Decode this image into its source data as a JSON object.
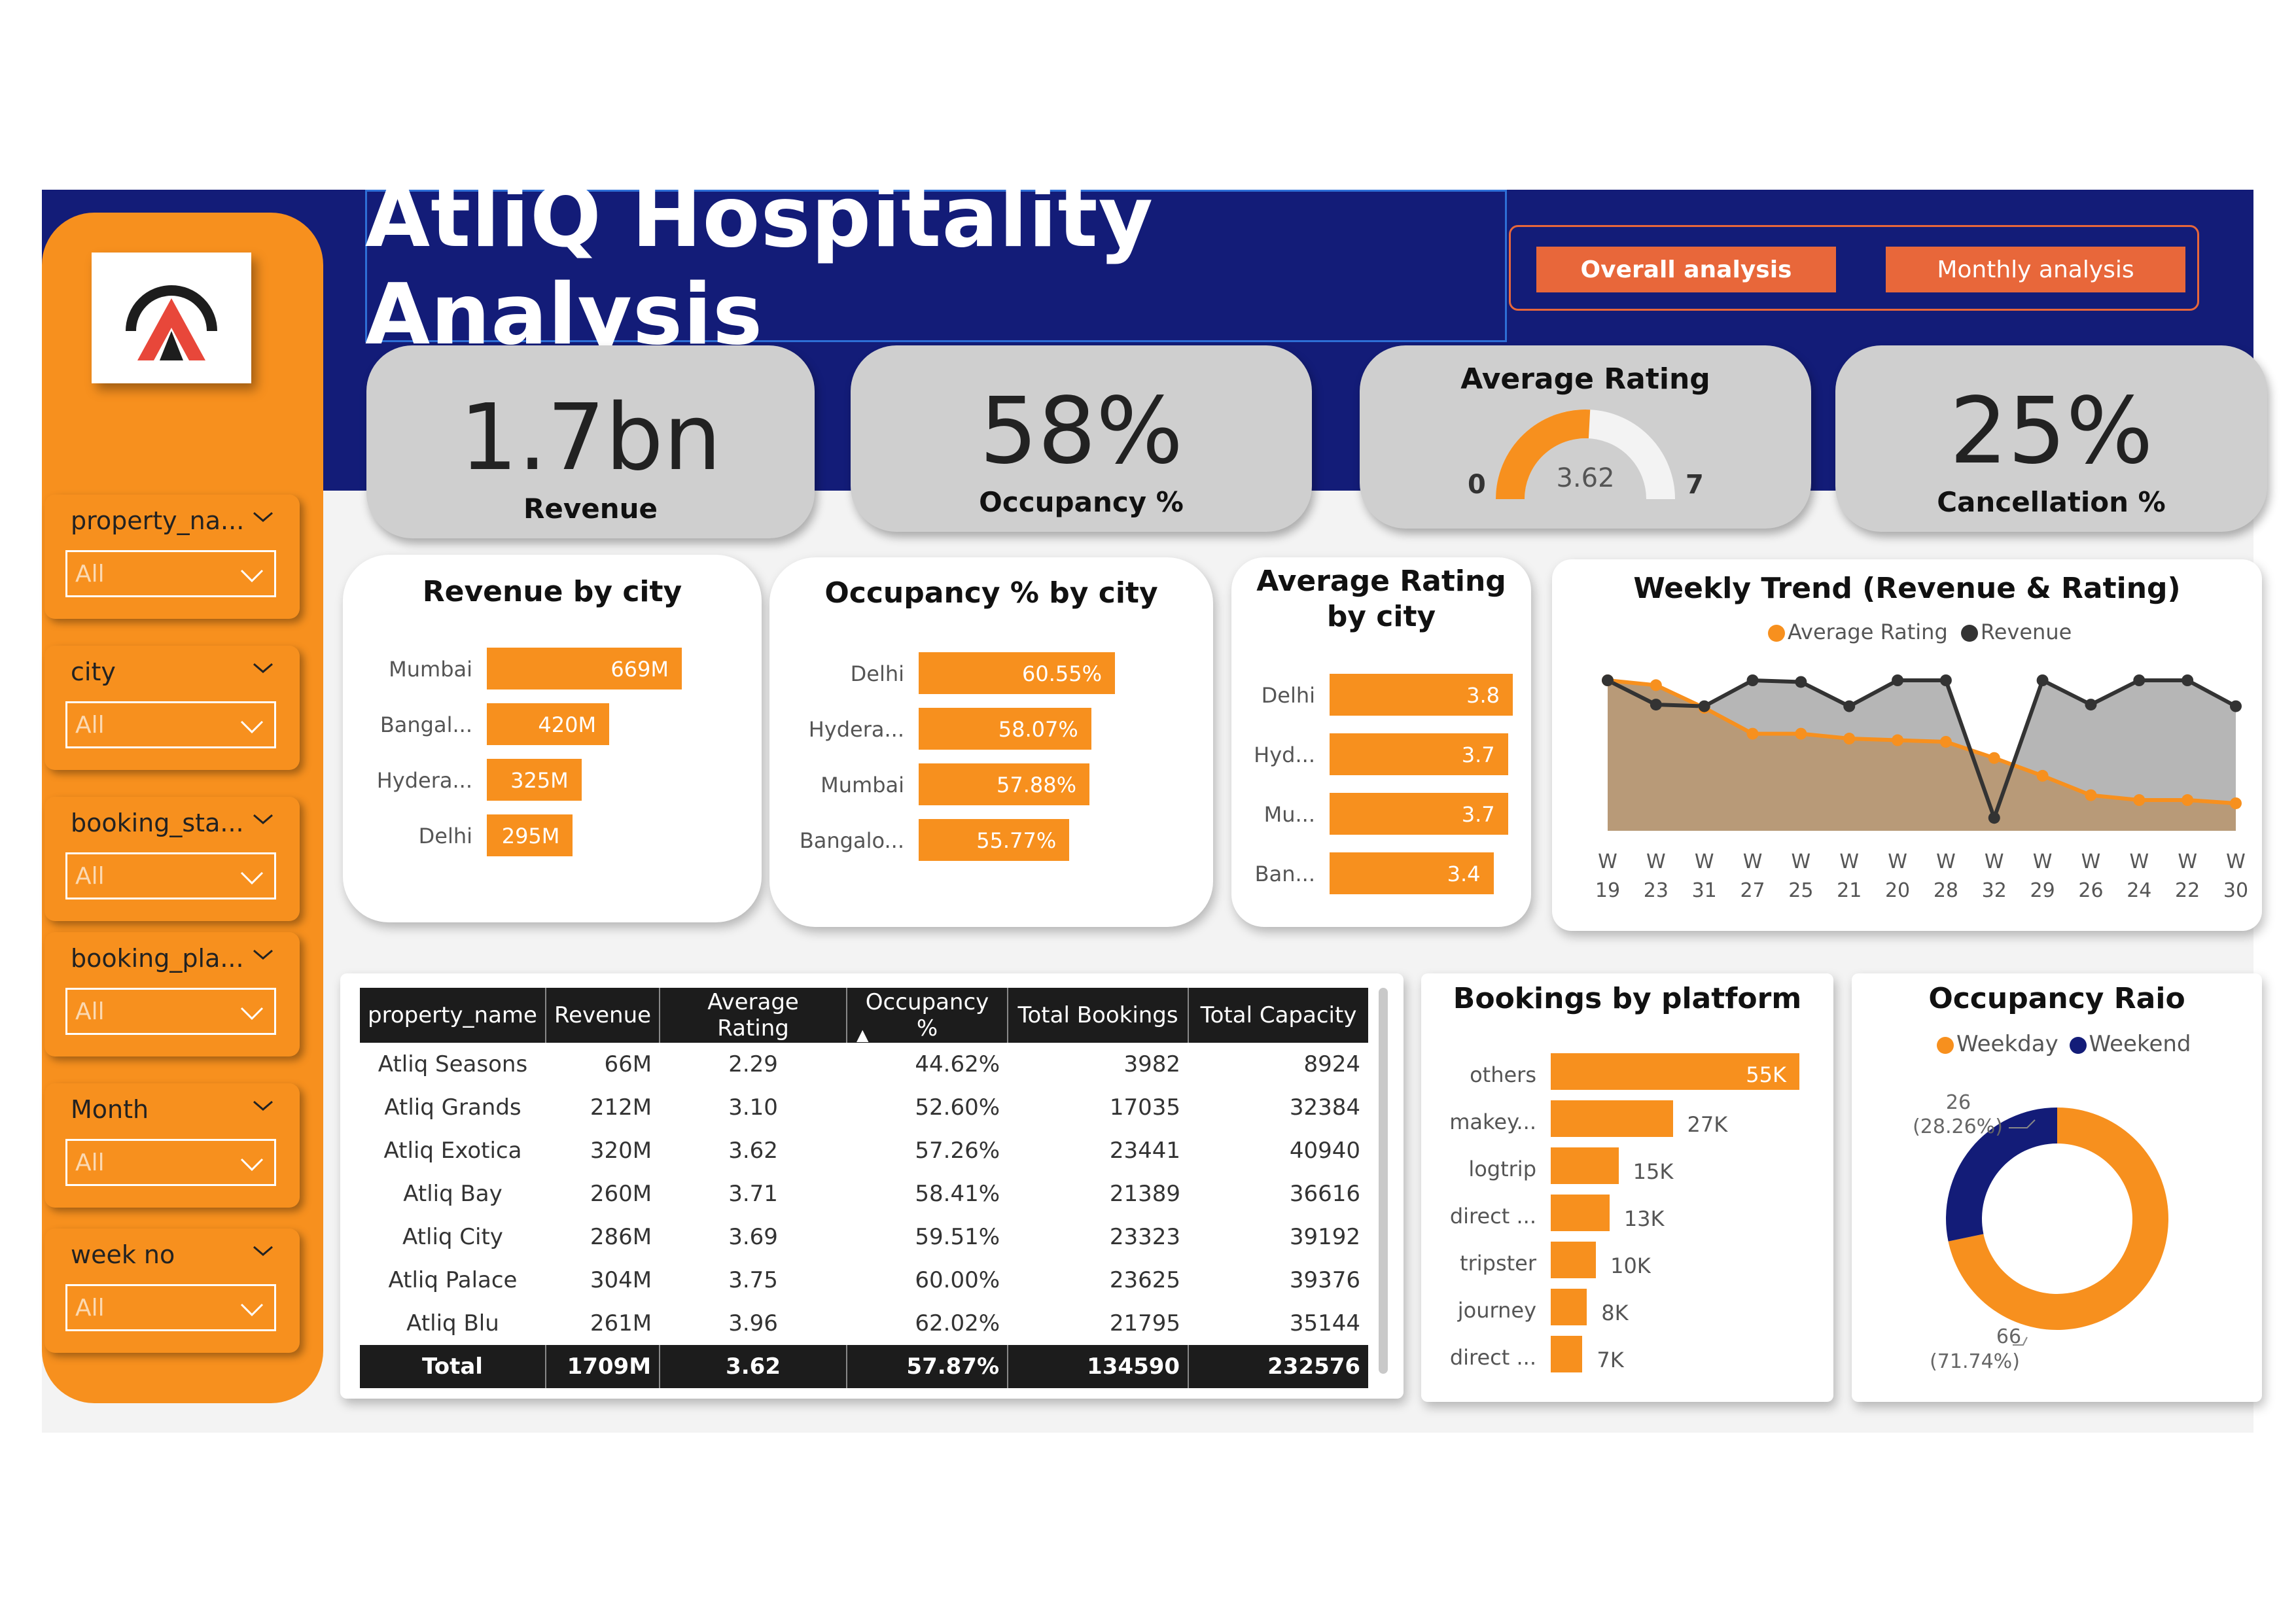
{
  "app": {
    "title": "AtliQ Hospitality Analysis",
    "nav": [
      "Overall analysis",
      "Monthly analysis"
    ]
  },
  "colors": {
    "navy": "#131c78",
    "orange": "#f7901e",
    "nav_orange": "#e8673a",
    "dark_gray": "#333333",
    "area_gray": "#a9a9a9",
    "area_brown": "#b89a78"
  },
  "slicers": [
    {
      "title": "property_na...",
      "value": "All"
    },
    {
      "title": "city",
      "value": "All"
    },
    {
      "title": "booking_sta...",
      "value": "All"
    },
    {
      "title": "booking_pla...",
      "value": "All"
    },
    {
      "title": "Month",
      "value": "All"
    },
    {
      "title": "week no",
      "value": "All"
    }
  ],
  "kpis": {
    "revenue": {
      "value": "1.7bn",
      "label": "Revenue"
    },
    "occupancy": {
      "value": "58%",
      "label": "Occupancy %"
    },
    "rating": {
      "label": "Average Rating",
      "value": "3.62",
      "min": "0",
      "max": "7",
      "fraction": 0.517
    },
    "cancellation": {
      "value": "25%",
      "label": "Cancellation %"
    }
  },
  "revenue_by_city": {
    "title": "Revenue by city",
    "chart_data": {
      "type": "bar",
      "categories": [
        "Mumbai",
        "Bangal...",
        "Hydera...",
        "Delhi"
      ],
      "values": [
        669,
        420,
        325,
        295
      ],
      "labels": [
        "669M",
        "420M",
        "325M",
        "295M"
      ]
    }
  },
  "occupancy_by_city": {
    "title": "Occupancy % by city",
    "chart_data": {
      "type": "bar",
      "categories": [
        "Delhi",
        "Hydera...",
        "Mumbai",
        "Bangalo..."
      ],
      "values": [
        60.55,
        58.07,
        57.88,
        55.77
      ],
      "labels": [
        "60.55%",
        "58.07%",
        "57.88%",
        "55.77%"
      ]
    }
  },
  "rating_by_city": {
    "title": "Average Rating by city",
    "chart_data": {
      "type": "bar",
      "categories": [
        "Delhi",
        "Hyd...",
        "Mu...",
        "Ban..."
      ],
      "values": [
        3.8,
        3.7,
        3.7,
        3.4
      ],
      "labels": [
        "3.8",
        "3.7",
        "3.7",
        "3.4"
      ]
    }
  },
  "weekly_trend": {
    "title": "Weekly Trend (Revenue & Rating)",
    "legend": [
      "Average Rating",
      "Revenue"
    ],
    "chart_data": {
      "type": "line",
      "x_top": [
        "W",
        "W",
        "W",
        "W",
        "W",
        "W",
        "W",
        "W",
        "W",
        "W",
        "W",
        "W",
        "W",
        "W"
      ],
      "x": [
        "19",
        "23",
        "31",
        "27",
        "25",
        "21",
        "20",
        "28",
        "32",
        "29",
        "26",
        "24",
        "22",
        "30"
      ],
      "series": [
        {
          "name": "Revenue",
          "values": [
            0.93,
            0.78,
            0.77,
            0.93,
            0.92,
            0.77,
            0.93,
            0.93,
            0.08,
            0.93,
            0.78,
            0.93,
            0.93,
            0.77
          ]
        },
        {
          "name": "Average Rating",
          "values": [
            0.93,
            0.9,
            0.76,
            0.6,
            0.6,
            0.57,
            0.56,
            0.55,
            0.45,
            0.34,
            0.22,
            0.19,
            0.19,
            0.17
          ]
        }
      ]
    }
  },
  "table": {
    "headers": [
      "property_name",
      "Revenue",
      "Average Rating",
      "Occupancy %",
      "Total Bookings",
      "Total Capacity"
    ],
    "sorted_col": "Occupancy %",
    "rows": [
      [
        "Atliq Seasons",
        "66M",
        "2.29",
        "44.62%",
        "3982",
        "8924"
      ],
      [
        "Atliq Grands",
        "212M",
        "3.10",
        "52.60%",
        "17035",
        "32384"
      ],
      [
        "Atliq Exotica",
        "320M",
        "3.62",
        "57.26%",
        "23441",
        "40940"
      ],
      [
        "Atliq Bay",
        "260M",
        "3.71",
        "58.41%",
        "21389",
        "36616"
      ],
      [
        "Atliq City",
        "286M",
        "3.69",
        "59.51%",
        "23323",
        "39192"
      ],
      [
        "Atliq Palace",
        "304M",
        "3.75",
        "60.00%",
        "23625",
        "39376"
      ],
      [
        "Atliq Blu",
        "261M",
        "3.96",
        "62.02%",
        "21795",
        "35144"
      ]
    ],
    "total": [
      "Total",
      "1709M",
      "3.62",
      "57.87%",
      "134590",
      "232576"
    ]
  },
  "bookings_by_platform": {
    "title": "Bookings by platform",
    "chart_data": {
      "type": "bar",
      "categories": [
        "others",
        "makey...",
        "logtrip",
        "direct ...",
        "tripster",
        "journey",
        "direct ..."
      ],
      "values": [
        55,
        27,
        15,
        13,
        10,
        8,
        7
      ],
      "labels": [
        "55K",
        "27K",
        "15K",
        "13K",
        "10K",
        "8K",
        "7K"
      ]
    }
  },
  "occupancy_ratio": {
    "title": "Occupancy Raio",
    "legend": [
      "Weekday",
      "Weekend"
    ],
    "chart_data": {
      "type": "pie",
      "categories": [
        "Weekday",
        "Weekend"
      ],
      "values": [
        66,
        26
      ],
      "percent_labels": [
        "(71.74%)",
        "(28.26%)"
      ],
      "value_labels": [
        "66",
        "26"
      ]
    }
  }
}
